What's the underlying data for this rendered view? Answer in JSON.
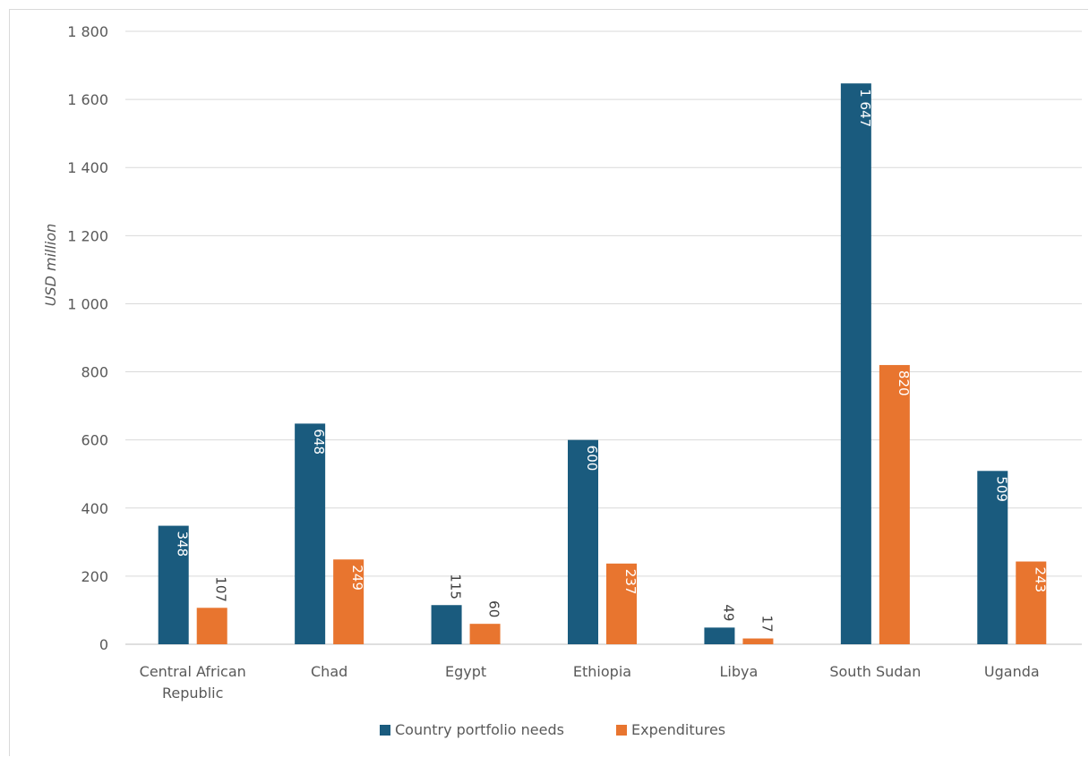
{
  "chart_data": {
    "type": "bar",
    "title": "",
    "xlabel": "",
    "ylabel": "USD million",
    "ylim": [
      0,
      1800
    ],
    "yticks": [
      0,
      200,
      400,
      600,
      800,
      1000,
      1200,
      1400,
      1600,
      1800
    ],
    "ytick_labels": [
      "0",
      "200",
      "400",
      "600",
      "800",
      "1 000",
      "1 200",
      "1 400",
      "1 600",
      "1 800"
    ],
    "grid": true,
    "legend_position": "bottom",
    "categories": [
      [
        "Central African",
        "Republic"
      ],
      [
        "Chad"
      ],
      [
        "Egypt"
      ],
      [
        "Ethiopia"
      ],
      [
        "Libya"
      ],
      [
        "South Sudan"
      ],
      [
        "Uganda"
      ]
    ],
    "series": [
      {
        "name": "Country portfolio needs",
        "color": "#1a5b7e",
        "values": [
          348,
          648,
          115,
          600,
          49,
          1647,
          509
        ],
        "labels": [
          "348",
          "648",
          "115",
          "600",
          "49",
          "1 647",
          "509"
        ]
      },
      {
        "name": "Expenditures",
        "color": "#e8752f",
        "values": [
          107,
          249,
          60,
          237,
          17,
          820,
          243
        ],
        "labels": [
          "107",
          "249",
          "60",
          "237",
          "17",
          "820",
          "243"
        ]
      }
    ]
  }
}
